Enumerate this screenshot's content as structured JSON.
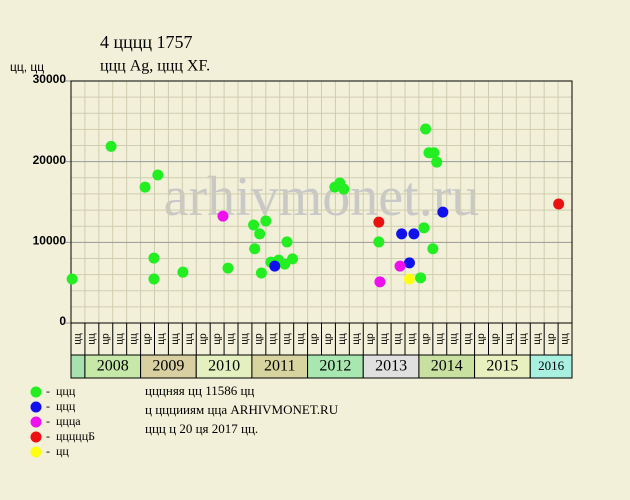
{
  "chart_data": {
    "type": "scatter",
    "title": "4 цццц 1757",
    "subtitle": "ццц Ag, ццц XF.",
    "y_label": "цц, цц",
    "watermark": "arhivmonet.ru",
    "xlim": [
      2007.75,
      2016.75
    ],
    "ylim": [
      0,
      30000
    ],
    "yticks": [
      0,
      10000,
      20000,
      30000
    ],
    "yminor": [
      2000,
      4000,
      6000,
      8000,
      12000,
      14000,
      16000,
      18000,
      22000,
      24000,
      26000,
      28000
    ],
    "xticks": [
      2007.75,
      2008,
      2008.25,
      2008.5,
      2008.75,
      2009,
      2009.25,
      2009.5,
      2009.75,
      2010,
      2010.25,
      2010.5,
      2010.75,
      2011,
      2011.25,
      2011.5,
      2011.75,
      2012,
      2012.25,
      2012.5,
      2012.75,
      2013,
      2013.25,
      2013.5,
      2013.75,
      2014,
      2014.25,
      2014.5,
      2014.75,
      2015,
      2015.25,
      2015.5,
      2015.75,
      2016,
      2016.25,
      2016.5,
      2016.75
    ],
    "column_labels": [
      "цц",
      "цц",
      "цр",
      "цц",
      "цц",
      "цр",
      "цц",
      "цц",
      "цц",
      "цр",
      "цр",
      "цц",
      "цц",
      "цр",
      "цц",
      "цц",
      "цц",
      "цр",
      "цр",
      "цц",
      "цц",
      "цр",
      "цц",
      "цц",
      "цц",
      "цр",
      "цц",
      "цц",
      "цц",
      "цр",
      "цр",
      "цц",
      "цц",
      "цц",
      "цр",
      "цц"
    ],
    "year_labels": [
      null,
      2008,
      2009,
      2010,
      2011,
      2012,
      2013,
      2014,
      2015,
      2016
    ],
    "year_colors": [
      "#a8e0b0",
      "#c6e8a8",
      "#d8d0a0",
      "#e4f0c0",
      "#d8d4a0",
      "#a8e8b0",
      "#e0e0e0",
      "#c8e0a0",
      "#e8f0c0",
      "#a8f0e0"
    ],
    "series": [
      {
        "name": "ццц",
        "color": "#22ee22",
        "x": [
          2007.77,
          2008.47,
          2009.08,
          2009.31,
          2009.24,
          2009.24,
          2009.76,
          2010.57,
          2011.03,
          2011.05,
          2011.14,
          2011.17,
          2011.25,
          2011.34,
          2011.48,
          2011.59,
          2011.63,
          2011.73,
          2012.49,
          2012.58,
          2012.65,
          2013.28,
          2014.03,
          2014.09,
          2014.12,
          2014.18,
          2014.27,
          2014.32,
          2014.25
        ],
        "values": [
          5450,
          21900,
          16850,
          18350,
          8050,
          5450,
          6300,
          6800,
          12150,
          9200,
          11050,
          6200,
          12650,
          7550,
          7800,
          7300,
          10050,
          7950,
          16850,
          17350,
          16600,
          10050,
          5600,
          11800,
          24050,
          21100,
          21100,
          19950,
          9200
        ]
      },
      {
        "name": "ццц",
        "color": "#1010ee",
        "x": [
          2011.41,
          2013.69,
          2013.91,
          2013.83,
          2014.43
        ],
        "values": [
          7050,
          11050,
          11050,
          7450,
          13750
        ]
      },
      {
        "name": "ццца",
        "color": "#ee10ee",
        "x": [
          2010.48,
          2013.66,
          2013.3
        ],
        "values": [
          13250,
          7050,
          5100
        ]
      },
      {
        "name": "цццццБ",
        "color": "#ee1010",
        "x": [
          2013.28,
          2016.51
        ],
        "values": [
          12500,
          14750
        ]
      },
      {
        "name": "цц",
        "color": "#ffff10",
        "x": [
          2013.83
        ],
        "values": [
          5450
        ]
      }
    ],
    "notes": [
      "цццняя цц 11586 цц",
      "ц цццииям цца ARHIVMONET.RU",
      "ццц ц 20 ця 2017 цц."
    ]
  }
}
